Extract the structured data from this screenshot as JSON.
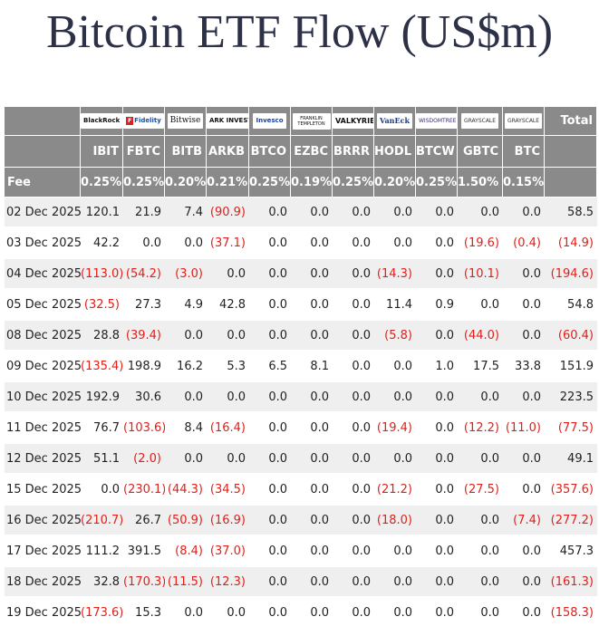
{
  "title": "Bitcoin ETF Flow (US$m)",
  "colors": {
    "header_bg": "#8a8a8a",
    "negative": "#e0201a",
    "title": "#2d3148",
    "stripe": "#efefef"
  },
  "table": {
    "logos": [
      "BlackRock",
      "Fidelity",
      "Bitwise",
      "ARK INVEST",
      "Invesco",
      "FRANKLIN TEMPLETON",
      "VALKYRIE",
      "VanEck",
      "WISDOMTREE",
      "GRAYSCALE",
      "GRAYSCALE"
    ],
    "total_label": "Total",
    "tickers": [
      "IBIT",
      "FBTC",
      "BITB",
      "ARKB",
      "BTCO",
      "EZBC",
      "BRRR",
      "HODL",
      "BTCW",
      "GBTC",
      "BTC"
    ],
    "fee_label": "Fee",
    "fees": [
      "0.25%",
      "0.25%",
      "0.20%",
      "0.21%",
      "0.25%",
      "0.19%",
      "0.25%",
      "0.20%",
      "0.25%",
      "1.50%",
      "0.15%"
    ],
    "rows": [
      {
        "date": "02 Dec 2025",
        "values": [
          "120.1",
          "21.9",
          "7.4",
          "(90.9)",
          "0.0",
          "0.0",
          "0.0",
          "0.0",
          "0.0",
          "0.0",
          "0.0"
        ],
        "total": "58.5"
      },
      {
        "date": "03 Dec 2025",
        "values": [
          "42.2",
          "0.0",
          "0.0",
          "(37.1)",
          "0.0",
          "0.0",
          "0.0",
          "0.0",
          "0.0",
          "(19.6)",
          "(0.4)"
        ],
        "total": "(14.9)"
      },
      {
        "date": "04 Dec 2025",
        "values": [
          "(113.0)",
          "(54.2)",
          "(3.0)",
          "0.0",
          "0.0",
          "0.0",
          "0.0",
          "(14.3)",
          "0.0",
          "(10.1)",
          "0.0"
        ],
        "total": "(194.6)"
      },
      {
        "date": "05 Dec 2025",
        "values": [
          "(32.5)",
          "27.3",
          "4.9",
          "42.8",
          "0.0",
          "0.0",
          "0.0",
          "11.4",
          "0.9",
          "0.0",
          "0.0"
        ],
        "total": "54.8"
      },
      {
        "date": "08 Dec 2025",
        "values": [
          "28.8",
          "(39.4)",
          "0.0",
          "0.0",
          "0.0",
          "0.0",
          "0.0",
          "(5.8)",
          "0.0",
          "(44.0)",
          "0.0"
        ],
        "total": "(60.4)"
      },
      {
        "date": "09 Dec 2025",
        "values": [
          "(135.4)",
          "198.9",
          "16.2",
          "5.3",
          "6.5",
          "8.1",
          "0.0",
          "0.0",
          "1.0",
          "17.5",
          "33.8"
        ],
        "total": "151.9"
      },
      {
        "date": "10 Dec 2025",
        "values": [
          "192.9",
          "30.6",
          "0.0",
          "0.0",
          "0.0",
          "0.0",
          "0.0",
          "0.0",
          "0.0",
          "0.0",
          "0.0"
        ],
        "total": "223.5"
      },
      {
        "date": "11 Dec 2025",
        "values": [
          "76.7",
          "(103.6)",
          "8.4",
          "(16.4)",
          "0.0",
          "0.0",
          "0.0",
          "(19.4)",
          "0.0",
          "(12.2)",
          "(11.0)"
        ],
        "total": "(77.5)"
      },
      {
        "date": "12 Dec 2025",
        "values": [
          "51.1",
          "(2.0)",
          "0.0",
          "0.0",
          "0.0",
          "0.0",
          "0.0",
          "0.0",
          "0.0",
          "0.0",
          "0.0"
        ],
        "total": "49.1"
      },
      {
        "date": "15 Dec 2025",
        "values": [
          "0.0",
          "(230.1)",
          "(44.3)",
          "(34.5)",
          "0.0",
          "0.0",
          "0.0",
          "(21.2)",
          "0.0",
          "(27.5)",
          "0.0"
        ],
        "total": "(357.6)"
      },
      {
        "date": "16 Dec 2025",
        "values": [
          "(210.7)",
          "26.7",
          "(50.9)",
          "(16.9)",
          "0.0",
          "0.0",
          "0.0",
          "(18.0)",
          "0.0",
          "0.0",
          "(7.4)"
        ],
        "total": "(277.2)"
      },
      {
        "date": "17 Dec 2025",
        "values": [
          "111.2",
          "391.5",
          "(8.4)",
          "(37.0)",
          "0.0",
          "0.0",
          "0.0",
          "0.0",
          "0.0",
          "0.0",
          "0.0"
        ],
        "total": "457.3"
      },
      {
        "date": "18 Dec 2025",
        "values": [
          "32.8",
          "(170.3)",
          "(11.5)",
          "(12.3)",
          "0.0",
          "0.0",
          "0.0",
          "0.0",
          "0.0",
          "0.0",
          "0.0"
        ],
        "total": "(161.3)"
      },
      {
        "date": "19 Dec 2025",
        "values": [
          "(173.6)",
          "15.3",
          "0.0",
          "0.0",
          "0.0",
          "0.0",
          "0.0",
          "0.0",
          "0.0",
          "0.0",
          "0.0"
        ],
        "total": "(158.3)"
      }
    ]
  }
}
